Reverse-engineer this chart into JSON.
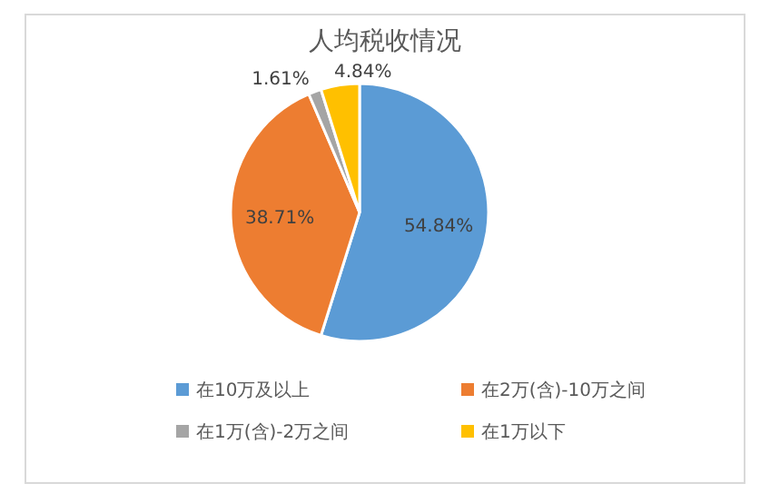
{
  "chart_data": {
    "type": "pie",
    "title": "人均税收情况",
    "categories": [
      "在10万及以上",
      "在2万(含)-10万之间",
      "在1万(含)-2万之间",
      "在1万以下"
    ],
    "values": [
      54.84,
      38.71,
      1.61,
      4.84
    ],
    "value_labels": [
      "54.84%",
      "38.71%",
      "1.61%",
      "4.84%"
    ],
    "colors": [
      "#5b9bd5",
      "#ed7d31",
      "#a5a5a5",
      "#ffc000"
    ],
    "legend": "bottom"
  }
}
